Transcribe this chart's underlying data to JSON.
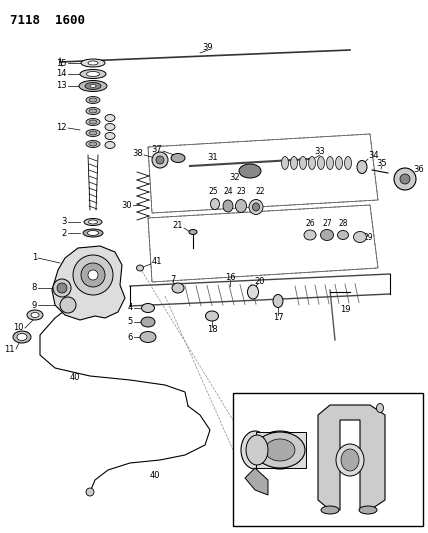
{
  "title": "7118  1600",
  "bg_color": "#ffffff",
  "fig_width": 4.28,
  "fig_height": 5.33,
  "dpi": 100
}
